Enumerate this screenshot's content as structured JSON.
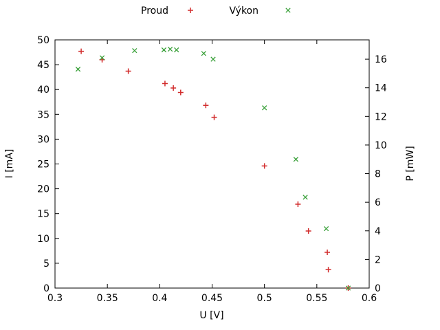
{
  "chart_data": {
    "type": "scatter",
    "title": "",
    "xlabel": "U [V]",
    "ylabel": "I [mA]",
    "y2label": "P [mW]",
    "xlim": [
      0.3,
      0.6
    ],
    "ylim": [
      0,
      50
    ],
    "y2lim": [
      0,
      17.35
    ],
    "xtick_values": [
      0.3,
      0.35,
      0.4,
      0.45,
      0.5,
      0.55,
      0.6
    ],
    "xtick_labels": [
      "0.3",
      "0.35",
      "0.4",
      "0.45",
      "0.5",
      "0.55",
      "0.6"
    ],
    "ytick_values": [
      0,
      5,
      10,
      15,
      20,
      25,
      30,
      35,
      40,
      45,
      50
    ],
    "ytick_labels": [
      "0",
      "5",
      "10",
      "15",
      "20",
      "25",
      "30",
      "35",
      "40",
      "45",
      "50"
    ],
    "y2tick_values": [
      0,
      2,
      4,
      6,
      8,
      10,
      12,
      14,
      16
    ],
    "y2tick_labels": [
      "0",
      "2",
      "4",
      "6",
      "8",
      "10",
      "12",
      "14",
      "16"
    ],
    "grid": false,
    "legend_position": "top-center",
    "series": [
      {
        "name": "Proud",
        "axis": "y",
        "marker": "plus",
        "color": "#d22d2d",
        "points": [
          [
            0.325,
            47.7
          ],
          [
            0.345,
            46.0
          ],
          [
            0.37,
            43.7
          ],
          [
            0.405,
            41.2
          ],
          [
            0.413,
            40.3
          ],
          [
            0.42,
            39.4
          ],
          [
            0.444,
            36.8
          ],
          [
            0.452,
            34.4
          ],
          [
            0.5,
            24.6
          ],
          [
            0.532,
            16.9
          ],
          [
            0.542,
            11.5
          ],
          [
            0.56,
            7.2
          ],
          [
            0.561,
            3.7
          ],
          [
            0.58,
            0
          ]
        ]
      },
      {
        "name": "Výkon",
        "axis": "y2",
        "marker": "cross",
        "color": "#39a039",
        "points": [
          [
            0.322,
            15.3
          ],
          [
            0.345,
            16.1
          ],
          [
            0.376,
            16.6
          ],
          [
            0.404,
            16.65
          ],
          [
            0.41,
            16.7
          ],
          [
            0.416,
            16.65
          ],
          [
            0.442,
            16.4
          ],
          [
            0.451,
            16.0
          ],
          [
            0.5,
            12.6
          ],
          [
            0.53,
            9.0
          ],
          [
            0.539,
            6.35
          ],
          [
            0.559,
            4.15
          ],
          [
            0.58,
            0
          ]
        ]
      }
    ]
  }
}
